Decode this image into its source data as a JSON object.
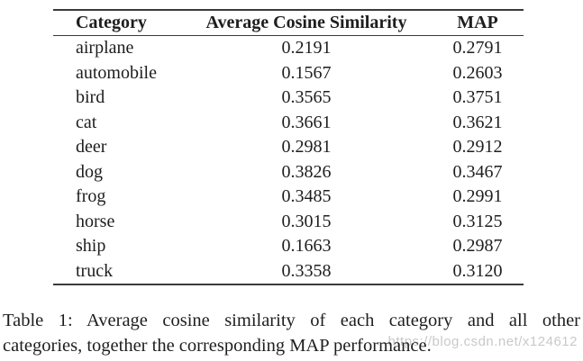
{
  "colors": {
    "background": "#ffffff",
    "text": "#1e1e1e",
    "rule": "#3a3a3a",
    "watermark": "#c9c9c9"
  },
  "table": {
    "columns": [
      "Category",
      "Average Cosine Similarity",
      "MAP"
    ],
    "rows": [
      {
        "category": "airplane",
        "avg_cosine_similarity": "0.2191",
        "map": "0.2791"
      },
      {
        "category": "automobile",
        "avg_cosine_similarity": "0.1567",
        "map": "0.2603"
      },
      {
        "category": "bird",
        "avg_cosine_similarity": "0.3565",
        "map": "0.3751"
      },
      {
        "category": "cat",
        "avg_cosine_similarity": "0.3661",
        "map": "0.3621"
      },
      {
        "category": "deer",
        "avg_cosine_similarity": "0.2981",
        "map": "0.2912"
      },
      {
        "category": "dog",
        "avg_cosine_similarity": "0.3826",
        "map": "0.3467"
      },
      {
        "category": "frog",
        "avg_cosine_similarity": "0.3485",
        "map": "0.2991"
      },
      {
        "category": "horse",
        "avg_cosine_similarity": "0.3015",
        "map": "0.3125"
      },
      {
        "category": "ship",
        "avg_cosine_similarity": "0.1663",
        "map": "0.2987"
      },
      {
        "category": "truck",
        "avg_cosine_similarity": "0.3358",
        "map": "0.3120"
      }
    ]
  },
  "caption": {
    "line1": "Table 1:  Average cosine similarity of each category and all other",
    "line2": "categories, together the corresponding MAP performance.",
    "full": "Table 1: Average cosine similarity of each category and all other categories, together the corresponding MAP performance."
  },
  "watermark": {
    "text": "https://blog.csdn.net/x124612"
  },
  "chart_data": {
    "type": "table",
    "title": "Table 1: Average cosine similarity of each category and all other categories, together the corresponding MAP performance.",
    "columns": [
      "Category",
      "Average Cosine Similarity",
      "MAP"
    ],
    "rows": [
      [
        "airplane",
        0.2191,
        0.2791
      ],
      [
        "automobile",
        0.1567,
        0.2603
      ],
      [
        "bird",
        0.3565,
        0.3751
      ],
      [
        "cat",
        0.3661,
        0.3621
      ],
      [
        "deer",
        0.2981,
        0.2912
      ],
      [
        "dog",
        0.3826,
        0.3467
      ],
      [
        "frog",
        0.3485,
        0.2991
      ],
      [
        "horse",
        0.3015,
        0.3125
      ],
      [
        "ship",
        0.1663,
        0.2987
      ],
      [
        "truck",
        0.3358,
        0.312
      ]
    ]
  }
}
